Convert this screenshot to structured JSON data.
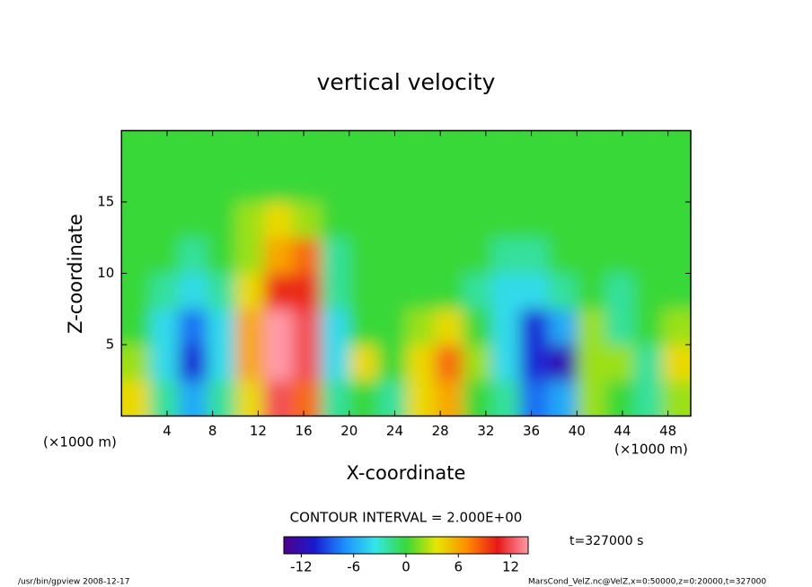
{
  "chart_data": {
    "type": "heatmap",
    "title": "vertical velocity",
    "x_label": "X-coordinate",
    "y_label": "Z-coordinate",
    "x_unit": "(×1000 m)",
    "y_unit": "(×1000 m)",
    "x": [
      1.25,
      3.75,
      6.25,
      8.75,
      11.25,
      13.75,
      16.25,
      18.75,
      21.25,
      23.75,
      26.25,
      28.75,
      31.25,
      33.75,
      36.25,
      38.75,
      41.25,
      43.75,
      46.25,
      48.75
    ],
    "y": [
      1.25,
      3.75,
      6.25,
      8.75,
      11.25,
      13.75,
      16.25,
      18.75
    ],
    "z": [
      [
        4,
        -2,
        -6,
        -2,
        4,
        12,
        8,
        -2,
        0,
        -2,
        4,
        6,
        0,
        -2,
        -8,
        -6,
        2,
        0,
        -2,
        2
      ],
      [
        2,
        -4,
        -10,
        -4,
        6,
        14,
        12,
        -4,
        4,
        0,
        4,
        8,
        2,
        -4,
        -10,
        -12,
        2,
        2,
        -2,
        4
      ],
      [
        0,
        -4,
        -8,
        -4,
        6,
        14,
        12,
        -4,
        0,
        0,
        2,
        4,
        0,
        -4,
        -10,
        -6,
        2,
        -2,
        0,
        2
      ],
      [
        0,
        -2,
        -4,
        -2,
        4,
        10,
        10,
        -2,
        0,
        0,
        0,
        0,
        -2,
        -4,
        -4,
        -2,
        0,
        -2,
        0,
        0
      ],
      [
        0,
        0,
        -2,
        0,
        2,
        6,
        8,
        -2,
        0,
        0,
        0,
        0,
        0,
        -2,
        -2,
        0,
        0,
        0,
        0,
        0
      ],
      [
        0,
        0,
        0,
        0,
        2,
        4,
        2,
        0,
        0,
        0,
        0,
        0,
        0,
        0,
        0,
        0,
        0,
        0,
        0,
        0
      ],
      [
        0,
        0,
        0,
        0,
        0,
        0,
        0,
        0,
        0,
        0,
        0,
        0,
        0,
        0,
        0,
        0,
        0,
        0,
        0,
        0
      ],
      [
        0,
        0,
        0,
        0,
        0,
        0,
        0,
        0,
        0,
        0,
        0,
        0,
        0,
        0,
        0,
        0,
        0,
        0,
        0,
        0
      ]
    ],
    "xlim": [
      0,
      50
    ],
    "ylim": [
      0,
      20
    ],
    "xticks": [
      4,
      8,
      12,
      16,
      20,
      24,
      28,
      32,
      36,
      40,
      44,
      48
    ],
    "yticks": [
      5,
      10,
      15
    ],
    "colormap": [
      "#50008c",
      "#1a1ad0",
      "#1e90ff",
      "#33e6e6",
      "#38d838",
      "#e6e600",
      "#ff8c00",
      "#e81818",
      "#ff9aa8"
    ],
    "colorbar_lim": [
      -14,
      14
    ],
    "colorbar_ticks": [
      -12,
      -6,
      0,
      6,
      12
    ],
    "contour_note": "CONTOUR INTERVAL = 2.000E+00",
    "time_note": "t=327000 s",
    "footer_left": "/usr/bin/gpview   2008-12-17",
    "footer_right": "MarsCond_VelZ.nc@VelZ,x=0:50000,z=0:20000,t=327000"
  }
}
